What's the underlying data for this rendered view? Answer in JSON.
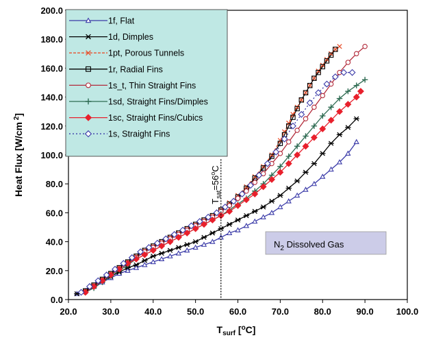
{
  "chart_data": {
    "type": "line",
    "xlabel": "Tsurf [oC]",
    "xlabel_parts": {
      "main": "T",
      "sub": "surf",
      "bracket_open": " [",
      "sup": "o",
      "unit": "C]"
    },
    "ylabel": "Heat Flux [W/cm 2]",
    "ylabel_parts": {
      "main": "Heat Flux [W/cm",
      "sup": " 2",
      "close": "]"
    },
    "xlim": [
      20,
      100
    ],
    "ylim": [
      0,
      200
    ],
    "x_ticks": [
      "20.0",
      "30.0",
      "40.0",
      "50.0",
      "60.0",
      "70.0",
      "80.0",
      "90.0",
      "100.0"
    ],
    "y_ticks": [
      "0.0",
      "20.0",
      "40.0",
      "60.0",
      "80.0",
      "100.0",
      "120.0",
      "140.0",
      "160.0",
      "180.0",
      "200.0"
    ],
    "legend_position": "top-left",
    "grid": false,
    "annotations": [
      {
        "kind": "vline",
        "x": 56,
        "label_main": "T",
        "label_sub": "sat",
        "label_rest": "=56",
        "label_sup": "o",
        "label_end": "C"
      },
      {
        "kind": "box",
        "label_main": "N",
        "label_sub": "2",
        "label_rest": " Dissolved Gas",
        "fill": "#cccce8"
      }
    ],
    "series": [
      {
        "name": "1f, Flat",
        "color": "#3a3aa8",
        "marker": "triangle",
        "dash": "",
        "x": [
          22,
          24,
          26,
          28,
          30,
          32,
          34,
          36,
          38,
          40,
          42,
          44,
          46,
          48,
          50,
          52,
          54,
          56,
          58,
          60,
          62,
          64,
          66,
          68,
          70,
          72,
          74,
          76,
          78,
          80,
          82,
          84,
          86,
          88
        ],
        "y": [
          4,
          6,
          9,
          12,
          15,
          18,
          20,
          22,
          24,
          26,
          28,
          30,
          32,
          34,
          36,
          38,
          40,
          43,
          46,
          48,
          51,
          54,
          57,
          60,
          64,
          68,
          72,
          76,
          80,
          85,
          90,
          95,
          101,
          109
        ]
      },
      {
        "name": "1d, Dimples",
        "color": "#000000",
        "marker": "asterisk",
        "dash": "",
        "x": [
          22,
          24,
          26,
          28,
          30,
          32,
          34,
          36,
          38,
          40,
          42,
          44,
          46,
          48,
          50,
          52,
          54,
          56,
          58,
          60,
          62,
          64,
          66,
          68,
          70,
          72,
          74,
          76,
          78,
          80,
          82,
          84,
          86,
          88
        ],
        "y": [
          4,
          6,
          9,
          13,
          16,
          19,
          22,
          24,
          27,
          30,
          32,
          34,
          36,
          38,
          40,
          43,
          46,
          49,
          52,
          55,
          58,
          61,
          64,
          68,
          72,
          77,
          82,
          88,
          94,
          101,
          108,
          114,
          119,
          125
        ]
      },
      {
        "name": "1pt, Porous Tunnels",
        "color": "#e8502c",
        "marker": "x",
        "dash": "4,2",
        "x": [
          24,
          26,
          28,
          30,
          32,
          34,
          36,
          38,
          40,
          42,
          44,
          46,
          48,
          50,
          52,
          54,
          56,
          58,
          60,
          62,
          64,
          66,
          68,
          70,
          71,
          72,
          73,
          74,
          75,
          76,
          77,
          78,
          79,
          80,
          81,
          82,
          83,
          84
        ],
        "y": [
          6,
          10,
          14,
          18,
          22,
          26,
          30,
          34,
          37,
          40,
          43,
          46,
          49,
          52,
          55,
          58,
          62,
          67,
          72,
          78,
          85,
          92,
          100,
          110,
          116,
          122,
          128,
          133,
          138,
          143,
          148,
          153,
          158,
          162,
          166,
          170,
          173,
          175
        ]
      },
      {
        "name": "1r, Radial Fins",
        "color": "#000000",
        "marker": "square",
        "dash": "",
        "x": [
          24,
          26,
          28,
          30,
          32,
          34,
          36,
          38,
          40,
          42,
          44,
          46,
          48,
          50,
          52,
          54,
          56,
          58,
          60,
          62,
          64,
          66,
          68,
          70,
          71,
          72,
          73,
          74,
          75,
          76,
          77,
          78,
          79,
          80,
          81,
          82,
          83
        ],
        "y": [
          6,
          10,
          14,
          18,
          22,
          26,
          30,
          34,
          37,
          40,
          43,
          46,
          49,
          52,
          55,
          58,
          62,
          66,
          71,
          77,
          84,
          91,
          99,
          108,
          114,
          120,
          126,
          132,
          138,
          143,
          148,
          153,
          157,
          161,
          165,
          169,
          173
        ]
      },
      {
        "name": "1s_t, Thin Straight Fins",
        "color": "#b22a3a",
        "marker": "circle",
        "dash": "",
        "x": [
          24,
          26,
          28,
          30,
          32,
          34,
          36,
          38,
          40,
          42,
          44,
          46,
          48,
          50,
          52,
          54,
          56,
          58,
          60,
          62,
          64,
          66,
          68,
          70,
          72,
          74,
          76,
          78,
          80,
          82,
          84,
          86,
          88,
          90
        ],
        "y": [
          5,
          9,
          13,
          17,
          21,
          25,
          29,
          33,
          36,
          39,
          42,
          45,
          48,
          51,
          54,
          57,
          61,
          65,
          70,
          75,
          81,
          87,
          94,
          101,
          109,
          117,
          125,
          133,
          141,
          149,
          157,
          164,
          170,
          175
        ]
      },
      {
        "name": "1sd, Straight Fins/Dimples",
        "color": "#2e6b52",
        "marker": "plus",
        "dash": "",
        "x": [
          24,
          26,
          28,
          30,
          32,
          34,
          36,
          38,
          40,
          42,
          44,
          46,
          48,
          50,
          52,
          54,
          56,
          58,
          60,
          62,
          64,
          66,
          68,
          70,
          72,
          74,
          76,
          78,
          80,
          82,
          84,
          86,
          88,
          90
        ],
        "y": [
          5,
          8,
          12,
          16,
          20,
          24,
          28,
          31,
          34,
          37,
          40,
          43,
          46,
          49,
          52,
          55,
          58,
          62,
          66,
          70,
          75,
          80,
          86,
          92,
          99,
          106,
          113,
          120,
          127,
          133,
          139,
          144,
          148,
          152
        ]
      },
      {
        "name": "1sc, Straight Fins/Cubics",
        "color": "#e8202c",
        "marker": "diamond-filled",
        "dash": "",
        "x": [
          24,
          26,
          28,
          30,
          32,
          34,
          36,
          38,
          40,
          42,
          44,
          46,
          48,
          50,
          52,
          54,
          56,
          58,
          60,
          62,
          64,
          66,
          68,
          70,
          72,
          74,
          76,
          78,
          80,
          82,
          84,
          86,
          88,
          89
        ],
        "y": [
          5,
          9,
          13,
          17,
          21,
          25,
          28,
          31,
          34,
          37,
          40,
          43,
          46,
          49,
          52,
          55,
          58,
          61,
          65,
          69,
          73,
          78,
          83,
          88,
          94,
          100,
          106,
          112,
          118,
          124,
          130,
          135,
          140,
          144
        ]
      },
      {
        "name": "1s, Straight Fins",
        "color": "#3a3aa8",
        "marker": "diamond",
        "dash": "2,3",
        "x": [
          23,
          25,
          27,
          29,
          31,
          33,
          35,
          37,
          39,
          41,
          43,
          45,
          47,
          49,
          51,
          53,
          55,
          57,
          59,
          61,
          63,
          65,
          67,
          69,
          71,
          73,
          75,
          77,
          79,
          81,
          83,
          85,
          87
        ],
        "y": [
          5,
          9,
          13,
          17,
          21,
          25,
          29,
          33,
          36,
          39,
          42,
          45,
          48,
          51,
          54,
          57,
          60,
          64,
          68,
          73,
          79,
          86,
          94,
          102,
          111,
          120,
          128,
          136,
          143,
          149,
          154,
          157,
          157
        ]
      }
    ]
  }
}
